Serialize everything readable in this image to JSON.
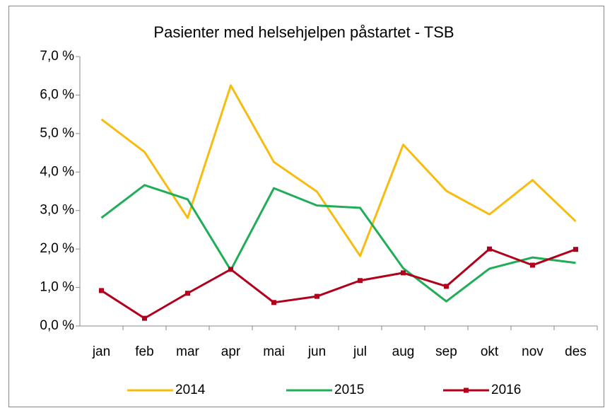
{
  "chart_data": {
    "type": "line",
    "title": "Pasienter med helsehjelpen påstartet - TSB",
    "categories": [
      "jan",
      "feb",
      "mar",
      "apr",
      "mai",
      "jun",
      "jul",
      "aug",
      "sep",
      "okt",
      "nov",
      "des"
    ],
    "series": [
      {
        "name": "2014",
        "color": "#f7bc0f",
        "values": [
          5.37,
          4.52,
          2.81,
          6.25,
          4.26,
          3.49,
          1.82,
          4.71,
          3.51,
          2.9,
          3.79,
          2.72
        ]
      },
      {
        "name": "2015",
        "color": "#1fae57",
        "values": [
          2.81,
          3.66,
          3.29,
          1.45,
          3.58,
          3.13,
          3.07,
          1.5,
          0.64,
          1.49,
          1.78,
          1.64
        ]
      },
      {
        "name": "2016",
        "color": "#b2001c",
        "markers": true,
        "values": [
          0.92,
          0.2,
          0.85,
          1.47,
          0.61,
          0.77,
          1.18,
          1.38,
          1.03,
          2.0,
          1.58,
          1.99
        ]
      }
    ],
    "ylim": [
      0,
      7
    ],
    "yticks": [
      {
        "value": 0,
        "label": "0,0 %"
      },
      {
        "value": 1,
        "label": "1,0 %"
      },
      {
        "value": 2,
        "label": "2,0 %"
      },
      {
        "value": 3,
        "label": "3,0 %"
      },
      {
        "value": 4,
        "label": "4,0 %"
      },
      {
        "value": 5,
        "label": "5,0 %"
      },
      {
        "value": 6,
        "label": "6,0 %"
      },
      {
        "value": 7,
        "label": "7,0 %"
      }
    ],
    "grid": false,
    "legend": "bottom"
  }
}
